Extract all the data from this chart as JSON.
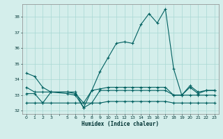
{
  "title": "",
  "xlabel": "Humidex (Indice chaleur)",
  "ylabel": "",
  "background_color": "#d4eeeb",
  "grid_color": "#a8d8d4",
  "line_color": "#006060",
  "xlim": [
    -0.5,
    23.5
  ],
  "ylim": [
    31.8,
    38.8
  ],
  "yticks": [
    32,
    33,
    34,
    35,
    36,
    37,
    38
  ],
  "xtick_labels": [
    "0",
    "1",
    "2",
    "3",
    "",
    "5",
    "6",
    "7",
    "8",
    "9",
    "10",
    "11",
    "12",
    "13",
    "14",
    "15",
    "16",
    "17",
    "18",
    "19",
    "20",
    "21",
    "22",
    "23"
  ],
  "xtick_positions": [
    0,
    1,
    2,
    3,
    4,
    5,
    6,
    7,
    8,
    9,
    10,
    11,
    12,
    13,
    14,
    15,
    16,
    17,
    18,
    19,
    20,
    21,
    22,
    23
  ],
  "series": [
    {
      "x": [
        0,
        1,
        2,
        3,
        5,
        6,
        7,
        8,
        9,
        10,
        11,
        12,
        13,
        14,
        15,
        16,
        17,
        18,
        19,
        20,
        21,
        22,
        23
      ],
      "y": [
        34.4,
        34.2,
        33.5,
        33.2,
        33.2,
        33.2,
        32.2,
        33.3,
        34.5,
        35.4,
        36.3,
        36.4,
        36.3,
        37.5,
        38.2,
        37.6,
        38.5,
        34.7,
        33.0,
        33.6,
        33.2,
        33.3,
        33.3
      ]
    },
    {
      "x": [
        0,
        1,
        2,
        3,
        5,
        6,
        7,
        8,
        9,
        10,
        11,
        12,
        13,
        14,
        15,
        16,
        17,
        18,
        19,
        20,
        21,
        22,
        23
      ],
      "y": [
        33.1,
        33.1,
        32.5,
        33.2,
        33.2,
        33.1,
        32.5,
        33.3,
        33.4,
        33.5,
        33.5,
        33.5,
        33.5,
        33.5,
        33.5,
        33.5,
        33.5,
        33.0,
        33.0,
        33.5,
        33.1,
        33.3,
        33.3
      ]
    },
    {
      "x": [
        0,
        1,
        2,
        3,
        5,
        6,
        7,
        8,
        9,
        10,
        11,
        12,
        13,
        14,
        15,
        16,
        17,
        18,
        19,
        20,
        21,
        22,
        23
      ],
      "y": [
        32.5,
        32.5,
        32.5,
        32.5,
        32.5,
        32.5,
        32.5,
        32.5,
        32.5,
        32.6,
        32.6,
        32.6,
        32.6,
        32.6,
        32.6,
        32.6,
        32.6,
        32.5,
        32.5,
        32.5,
        32.5,
        32.5,
        32.5
      ]
    },
    {
      "x": [
        0,
        1,
        2,
        3,
        5,
        6,
        7,
        8,
        9,
        10,
        11,
        12,
        13,
        14,
        15,
        16,
        17,
        18,
        19,
        20,
        21,
        22,
        23
      ],
      "y": [
        33.5,
        33.2,
        33.2,
        33.2,
        33.1,
        33.0,
        32.2,
        32.5,
        33.3,
        33.3,
        33.3,
        33.3,
        33.3,
        33.3,
        33.3,
        33.3,
        33.3,
        33.0,
        33.0,
        33.0,
        33.0,
        33.0,
        33.0
      ]
    }
  ]
}
